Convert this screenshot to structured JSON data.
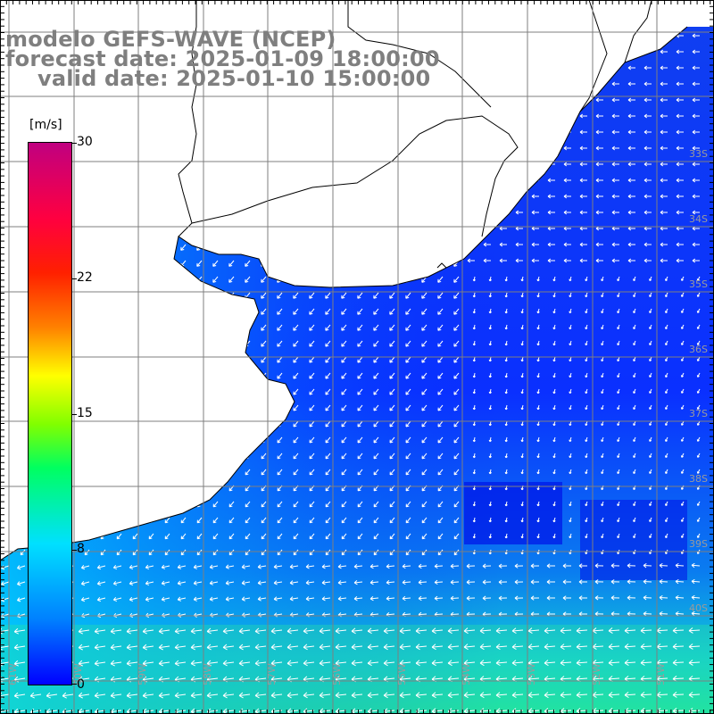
{
  "title": {
    "line1": "modelo GEFS-WAVE (NCEP)",
    "line2": "forecast date: 2025-01-09 18:00:00",
    "line3": "valid date: 2025-01-10 15:00:00"
  },
  "colorbar": {
    "unit": "[m/s]",
    "labels": [
      "30",
      "22",
      "15",
      "8",
      "0"
    ],
    "colors": [
      "#0000ff",
      "#0080ff",
      "#00e0ff",
      "#00ff60",
      "#80ff00",
      "#ffff00",
      "#ff8000",
      "#ff2000",
      "#ff0040",
      "#c00080"
    ]
  },
  "map": {
    "lat_labels": [
      "33S",
      "34S",
      "35S",
      "36S",
      "37S",
      "38S",
      "39S",
      "40S"
    ],
    "lon_labels": [
      "61W",
      "60W",
      "59W",
      "58W",
      "57W",
      "56W",
      "55W",
      "54W",
      "53W",
      "52W",
      "51W"
    ],
    "land_color": "#ffffff",
    "grid_color": "#7f7f7f",
    "coast_color": "#000000"
  }
}
